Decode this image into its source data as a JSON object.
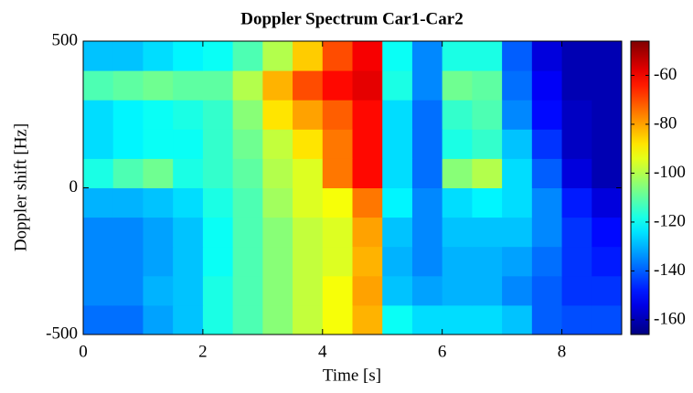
{
  "chart_data": {
    "type": "heatmap",
    "title": "Doppler Spectrum Car1-Car2",
    "xlabel": "Time [s]",
    "ylabel": "Doppler shift [Hz]",
    "x": [
      0.25,
      0.75,
      1.25,
      1.75,
      2.25,
      2.75,
      3.25,
      3.75,
      4.25,
      4.75,
      5.25,
      5.75,
      6.25,
      6.75,
      7.25,
      7.75,
      8.25,
      8.75
    ],
    "y": [
      -450,
      -350,
      -250,
      -150,
      -50,
      50,
      150,
      250,
      350,
      450
    ],
    "z": [
      [
        -138,
        -138,
        -132,
        -128,
        -118,
        -112,
        -105,
        -98,
        -92,
        -82,
        -120,
        -125,
        -125,
        -125,
        -128,
        -140,
        -142,
        -142
      ],
      [
        -135,
        -135,
        -130,
        -128,
        -118,
        -112,
        -105,
        -98,
        -92,
        -80,
        -128,
        -132,
        -130,
        -130,
        -135,
        -140,
        -145,
        -145
      ],
      [
        -135,
        -135,
        -132,
        -128,
        -120,
        -112,
        -105,
        -98,
        -95,
        -82,
        -130,
        -135,
        -130,
        -130,
        -132,
        -138,
        -145,
        -148
      ],
      [
        -135,
        -135,
        -132,
        -128,
        -120,
        -112,
        -105,
        -98,
        -95,
        -80,
        -128,
        -135,
        -128,
        -128,
        -128,
        -135,
        -145,
        -150
      ],
      [
        -130,
        -130,
        -128,
        -125,
        -118,
        -112,
        -102,
        -95,
        -92,
        -75,
        -122,
        -135,
        -125,
        -122,
        -125,
        -135,
        -148,
        -155
      ],
      [
        -118,
        -112,
        -108,
        -118,
        -115,
        -110,
        -100,
        -95,
        -75,
        -62,
        -125,
        -138,
        -105,
        -100,
        -125,
        -140,
        -155,
        -160
      ],
      [
        -125,
        -122,
        -120,
        -120,
        -115,
        -108,
        -98,
        -88,
        -75,
        -62,
        -125,
        -138,
        -118,
        -115,
        -128,
        -145,
        -158,
        -160
      ],
      [
        -125,
        -122,
        -120,
        -118,
        -115,
        -105,
        -88,
        -80,
        -72,
        -62,
        -125,
        -138,
        -115,
        -112,
        -135,
        -150,
        -158,
        -160
      ],
      [
        -112,
        -110,
        -108,
        -110,
        -110,
        -100,
        -82,
        -70,
        -62,
        -58,
        -118,
        -135,
        -108,
        -110,
        -138,
        -152,
        -160,
        -160
      ],
      [
        -128,
        -128,
        -125,
        -122,
        -120,
        -112,
        -100,
        -85,
        -70,
        -60,
        -120,
        -135,
        -118,
        -118,
        -140,
        -155,
        -160,
        -160
      ]
    ],
    "xlim": [
      0,
      9
    ],
    "ylim": [
      -500,
      500
    ],
    "xticks": [
      0,
      2,
      4,
      6,
      8
    ],
    "yticks": [
      -500,
      0,
      500
    ],
    "colormap": "jet",
    "clim": [
      -166,
      -46
    ],
    "cticks": [
      -160,
      -140,
      -120,
      -100,
      -80,
      -60
    ]
  }
}
